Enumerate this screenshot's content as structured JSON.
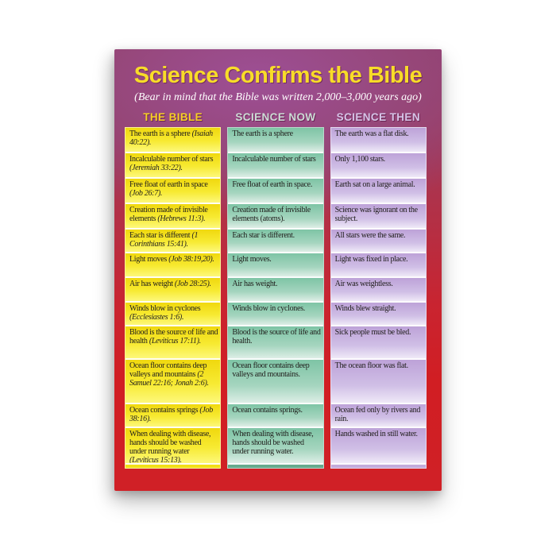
{
  "poster": {
    "title": "Science Confirms the Bible",
    "subtitle": "(Bear in mind that the Bible was written 2,000–3,000 years ago)",
    "colors": {
      "title_text": "#f8dc28",
      "subtitle_text": "#ffffff",
      "poster_top_purple": "#9a4b8e",
      "poster_bottom_red": "#d01e22",
      "bible_column_bg": "#f5e51c",
      "science_now_column_bg": "#7ec4a5",
      "science_then_column_bg": "#c7afdf",
      "header_bible_text": "#f6cf25",
      "header_science_now_text": "#cdddd6",
      "header_science_then_text": "#d6c5e8",
      "row_separator": "#ffffff",
      "body_text": "#22201e"
    },
    "table": {
      "columns": [
        {
          "id": "bible",
          "header": "THE BIBLE"
        },
        {
          "id": "now",
          "header": "SCIENCE NOW"
        },
        {
          "id": "then",
          "header": "SCIENCE THEN"
        }
      ],
      "rows": [
        {
          "bible": "The earth is a sphere",
          "ref": "(Isaiah 40:22).",
          "now": "The earth is a sphere",
          "then": "The earth was a flat disk."
        },
        {
          "bible": "Incalculable number of stars",
          "ref": "(Jeremiah 33:22).",
          "now": "Incalculable number of stars",
          "then": "Only 1,100 stars."
        },
        {
          "bible": "Free float of earth in space",
          "ref": "(Job 26:7).",
          "now": "Free float of earth in space.",
          "then": "Earth sat on a large animal."
        },
        {
          "bible": "Creation made of invisible elements",
          "ref": "(Hebrews 11:3).",
          "now": "Creation made of invisible elements (atoms).",
          "then": "Science was ignorant on the subject."
        },
        {
          "bible": "Each star is different",
          "ref": "(1 Corinthians 15:41).",
          "now": "Each star is different.",
          "then": "All stars were the same."
        },
        {
          "bible": "Light moves",
          "ref": "(Job 38:19,20).",
          "now": "Light moves.",
          "then": "Light was fixed in place."
        },
        {
          "bible": "Air has weight",
          "ref": "(Job 28:25).",
          "now": "Air has weight.",
          "then": "Air was weightless."
        },
        {
          "bible": "Winds blow in cyclones",
          "ref": "(Ecclesiastes 1:6).",
          "now": "Winds blow in cyclones.",
          "then": "Winds blew straight."
        },
        {
          "bible": "Blood is the source of life and health",
          "ref": "(Leviticus 17:11).",
          "now": "Blood is the source of life and health.",
          "then": "Sick people must be bled."
        },
        {
          "bible": "Ocean floor contains deep valleys and mountains",
          "ref": "(2 Samuel 22:16; Jonah 2:6).",
          "now": "Ocean floor contains deep valleys and mountains.",
          "then": "The ocean floor was flat."
        },
        {
          "bible": "Ocean contains springs",
          "ref": "(Job 38:16).",
          "now": "Ocean contains springs.",
          "then": "Ocean fed only by rivers and rain."
        },
        {
          "bible": "When dealing with disease, hands should be washed under running water",
          "ref": "(Leviticus 15:13).",
          "now": "When dealing with disease, hands should be washed under running water.",
          "then": "Hands washed in still water."
        }
      ]
    }
  }
}
